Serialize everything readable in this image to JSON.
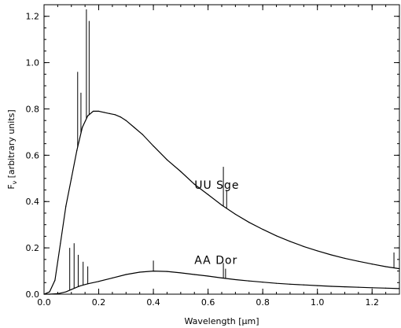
{
  "chart_data": {
    "type": "line",
    "title": "",
    "xlabel_prefix": "Wavelength [",
    "xlabel_unit": "μm",
    "xlabel_suffix": "]",
    "ylabel_main": "F",
    "ylabel_sub": "ν",
    "ylabel_rest": " [arbitrary units]",
    "xlim": [
      0.0,
      1.3
    ],
    "ylim": [
      0.0,
      1.25
    ],
    "xticks": [
      0.0,
      0.2,
      0.4,
      0.6,
      0.8,
      1.0,
      1.2
    ],
    "xtick_labels": [
      "0.0",
      "0.2",
      "0.4",
      "0.6",
      "0.8",
      "1.0",
      "1.2"
    ],
    "yticks": [
      0.0,
      0.2,
      0.4,
      0.6,
      0.8,
      1.0,
      1.2
    ],
    "ytick_labels": [
      "0.0",
      "0.2",
      "0.4",
      "0.6",
      "0.8",
      "1.0",
      "1.2"
    ],
    "grid": false,
    "legend": "none",
    "line_color": "#000000",
    "series": [
      {
        "name": "UU Sge",
        "x": [
          0.0,
          0.02,
          0.04,
          0.06,
          0.08,
          0.1,
          0.12,
          0.14,
          0.16,
          0.18,
          0.2,
          0.22,
          0.24,
          0.26,
          0.28,
          0.3,
          0.33,
          0.36,
          0.4,
          0.45,
          0.5,
          0.55,
          0.6,
          0.65,
          0.7,
          0.75,
          0.8,
          0.85,
          0.9,
          0.95,
          1.0,
          1.05,
          1.1,
          1.15,
          1.2,
          1.25,
          1.3
        ],
        "y": [
          0.0,
          0.01,
          0.06,
          0.22,
          0.38,
          0.5,
          0.62,
          0.72,
          0.77,
          0.79,
          0.79,
          0.785,
          0.78,
          0.775,
          0.765,
          0.75,
          0.72,
          0.69,
          0.64,
          0.58,
          0.53,
          0.475,
          0.43,
          0.385,
          0.345,
          0.31,
          0.28,
          0.252,
          0.228,
          0.206,
          0.187,
          0.17,
          0.155,
          0.142,
          0.13,
          0.119,
          0.11
        ],
        "emission_lines": [
          {
            "x": 0.155,
            "peak": 1.23
          },
          {
            "x": 0.165,
            "peak": 1.18
          },
          {
            "x": 0.123,
            "peak": 0.96
          },
          {
            "x": 0.135,
            "peak": 0.87
          },
          {
            "x": 0.656,
            "peak": 0.55
          },
          {
            "x": 0.668,
            "peak": 0.45
          },
          {
            "x": 1.28,
            "peak": 0.18
          }
        ]
      },
      {
        "name": "AA Dor",
        "x": [
          0.0,
          0.02,
          0.05,
          0.08,
          0.1,
          0.13,
          0.16,
          0.2,
          0.25,
          0.3,
          0.35,
          0.4,
          0.45,
          0.5,
          0.55,
          0.6,
          0.65,
          0.7,
          0.75,
          0.8,
          0.85,
          0.9,
          0.95,
          1.0,
          1.05,
          1.1,
          1.15,
          1.2,
          1.25,
          1.3
        ],
        "y": [
          0.0,
          0.0,
          0.002,
          0.01,
          0.02,
          0.035,
          0.045,
          0.055,
          0.07,
          0.085,
          0.095,
          0.1,
          0.098,
          0.092,
          0.085,
          0.078,
          0.07,
          0.063,
          0.057,
          0.052,
          0.047,
          0.043,
          0.04,
          0.037,
          0.034,
          0.032,
          0.03,
          0.028,
          0.026,
          0.024
        ],
        "emission_lines": [
          {
            "x": 0.094,
            "peak": 0.2
          },
          {
            "x": 0.11,
            "peak": 0.22
          },
          {
            "x": 0.125,
            "peak": 0.17
          },
          {
            "x": 0.143,
            "peak": 0.14
          },
          {
            "x": 0.16,
            "peak": 0.12
          },
          {
            "x": 0.4,
            "peak": 0.145
          },
          {
            "x": 0.656,
            "peak": 0.135
          },
          {
            "x": 0.664,
            "peak": 0.11
          }
        ]
      }
    ],
    "annotations": [
      {
        "text": "UU Sge",
        "x": 0.55,
        "y": 0.455
      },
      {
        "text": "AA Dor",
        "x": 0.55,
        "y": 0.13
      }
    ]
  }
}
